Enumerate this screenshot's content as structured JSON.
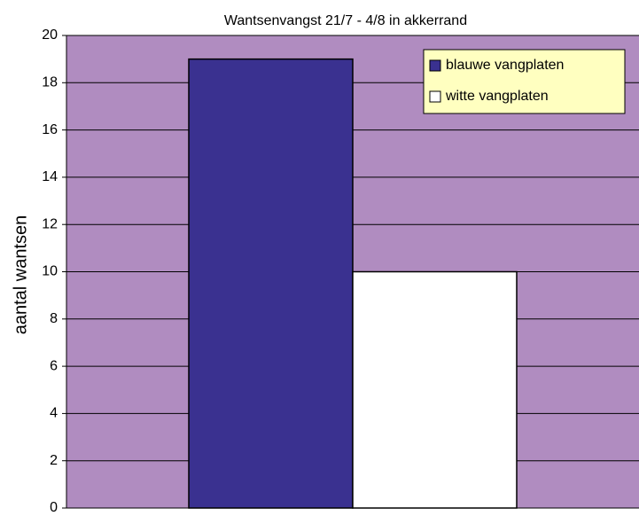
{
  "chart_data": {
    "type": "bar",
    "title": "Wantsenvangst 21/7 - 4/8 in akkerrand",
    "y_label": "aantal wantsen",
    "categories": [
      null
    ],
    "series": [
      {
        "name": "blauwe vangplaten",
        "color": "#3a3190",
        "values": [
          19
        ]
      },
      {
        "name": "witte vangplaten",
        "color": "#ffffff",
        "values": [
          10
        ]
      }
    ],
    "ylim": [
      0,
      20
    ],
    "yticks": [
      0,
      2,
      4,
      6,
      8,
      10,
      12,
      14,
      16,
      18,
      20
    ],
    "grid": true,
    "legend": "top-right",
    "background": "#b08cc0"
  }
}
